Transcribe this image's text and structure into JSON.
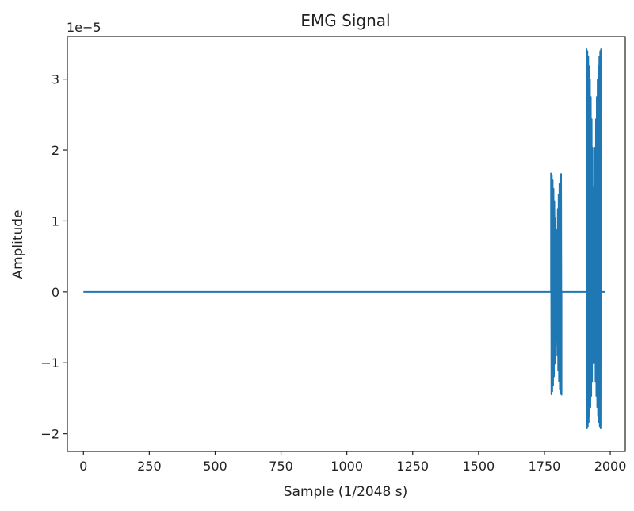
{
  "chart_data": {
    "type": "line",
    "title": "EMG Signal",
    "xlabel": "Sample (1/2048 s)",
    "ylabel": "Amplitude",
    "y_offset_label": "1e−5",
    "xlim": [
      -61,
      2057
    ],
    "ylim": [
      -2.25,
      3.6
    ],
    "y_scale_factor": 1e-05,
    "xticks": [
      0,
      250,
      500,
      750,
      1000,
      1250,
      1500,
      1750,
      2000
    ],
    "yticks": [
      -2,
      -1,
      0,
      1,
      2,
      3
    ],
    "xtick_labels": [
      "0",
      "250",
      "500",
      "750",
      "1000",
      "1250",
      "1500",
      "1750",
      "2000"
    ],
    "ytick_labels": [
      "−2",
      "−1",
      "0",
      "1",
      "2",
      "3"
    ],
    "grid": false,
    "color": "#1f77b4",
    "series": [
      {
        "x_range": [
          0,
          1980
        ],
        "baseline": 0,
        "bursts": [
          {
            "x_start": 1775,
            "x_end": 1815,
            "max": 1.67,
            "min": -1.45
          },
          {
            "x_start": 1910,
            "x_end": 1965,
            "max": 3.42,
            "min": -1.93
          }
        ]
      }
    ]
  }
}
